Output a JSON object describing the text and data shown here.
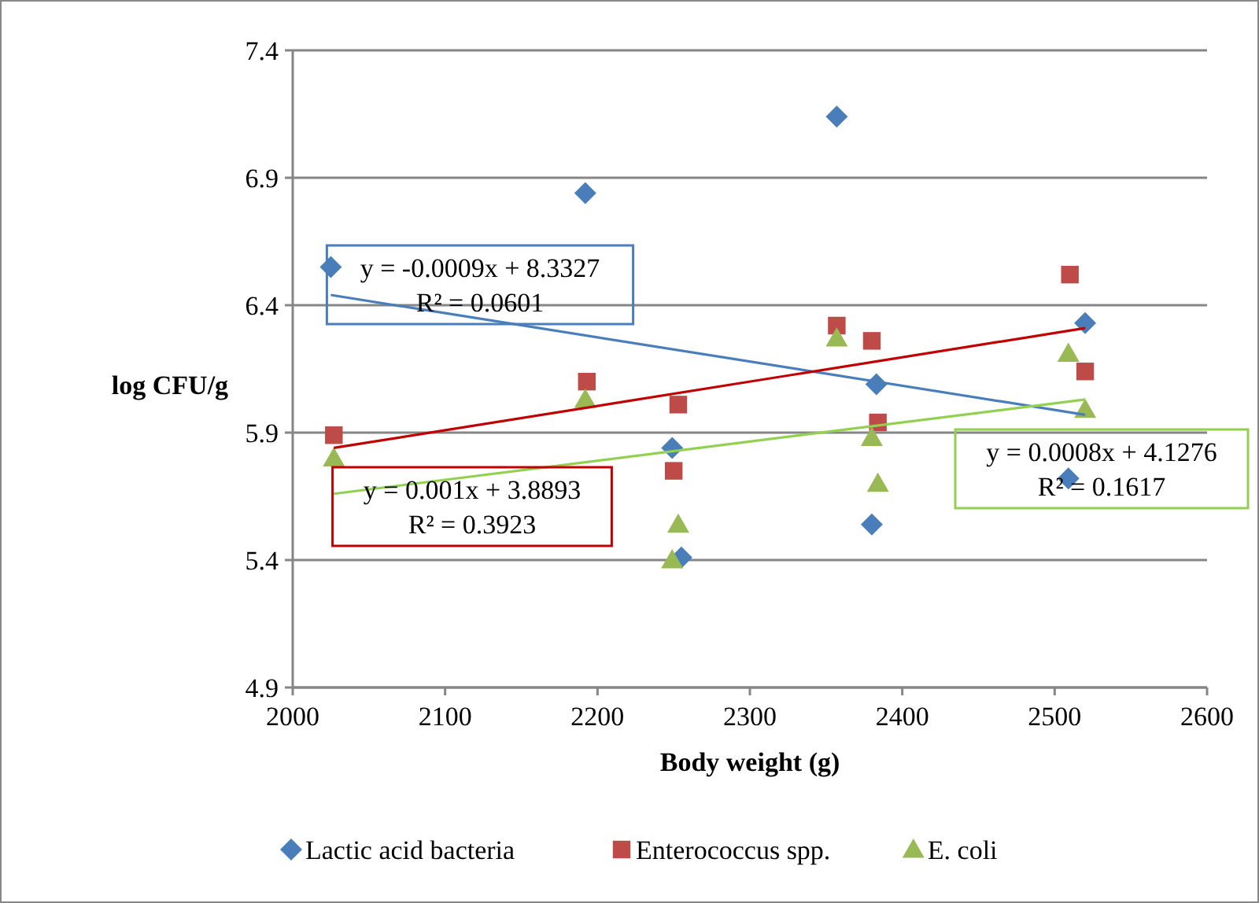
{
  "chart_data": {
    "type": "scatter",
    "xlabel": "Body weight (g)",
    "ylabel": "log CFU/g",
    "xlim": [
      2000,
      2600
    ],
    "xticks": [
      2000,
      2100,
      2200,
      2300,
      2400,
      2500,
      2600
    ],
    "ylim": [
      4.9,
      7.4
    ],
    "yticks": [
      4.9,
      5.4,
      5.9,
      6.4,
      6.9,
      7.4
    ],
    "grid": "y",
    "legend": "bottom",
    "series": [
      {
        "name": "Lactic acid bacteria",
        "color": "#4a7ebb",
        "marker": "diamond",
        "x": [
          2025,
          2192,
          2249,
          2255,
          2357,
          2383,
          2380,
          2520,
          2509
        ],
        "values": [
          6.55,
          6.84,
          5.84,
          5.41,
          7.14,
          6.09,
          5.54,
          6.33,
          5.72
        ]
      },
      {
        "name": "Enterococcus spp.",
        "color": "#be4b48",
        "marker": "square",
        "x": [
          2027,
          2193,
          2253,
          2250,
          2357,
          2380,
          2384,
          2510,
          2520
        ],
        "values": [
          5.89,
          6.1,
          6.01,
          5.75,
          6.32,
          6.26,
          5.94,
          6.52,
          6.14
        ]
      },
      {
        "name": "E. coli",
        "color": "#98b954",
        "marker": "triangle",
        "x": [
          2027,
          2192,
          2253,
          2249,
          2357,
          2380,
          2384,
          2509,
          2520
        ],
        "values": [
          5.8,
          6.03,
          5.54,
          5.4,
          6.27,
          5.88,
          5.7,
          6.21,
          5.99
        ]
      },
      {
        "type": "line",
        "color": "#4a7ebb",
        "x": [
          2025,
          2520
        ],
        "values": [
          6.44,
          5.97
        ]
      },
      {
        "type": "line",
        "color": "#c00000",
        "x": [
          2027,
          2520
        ],
        "values": [
          5.84,
          6.31
        ]
      },
      {
        "type": "line",
        "color": "#92d050",
        "x": [
          2027,
          2520
        ],
        "values": [
          5.66,
          6.03
        ]
      }
    ],
    "annotations": [
      "y = -0.0009x + 8.3327\nR² = 0.0601",
      "y = 0.001x + 3.8893\nR² = 0.3923",
      "y = 0.0008x + 4.1276\nR² = 0.1617"
    ]
  }
}
